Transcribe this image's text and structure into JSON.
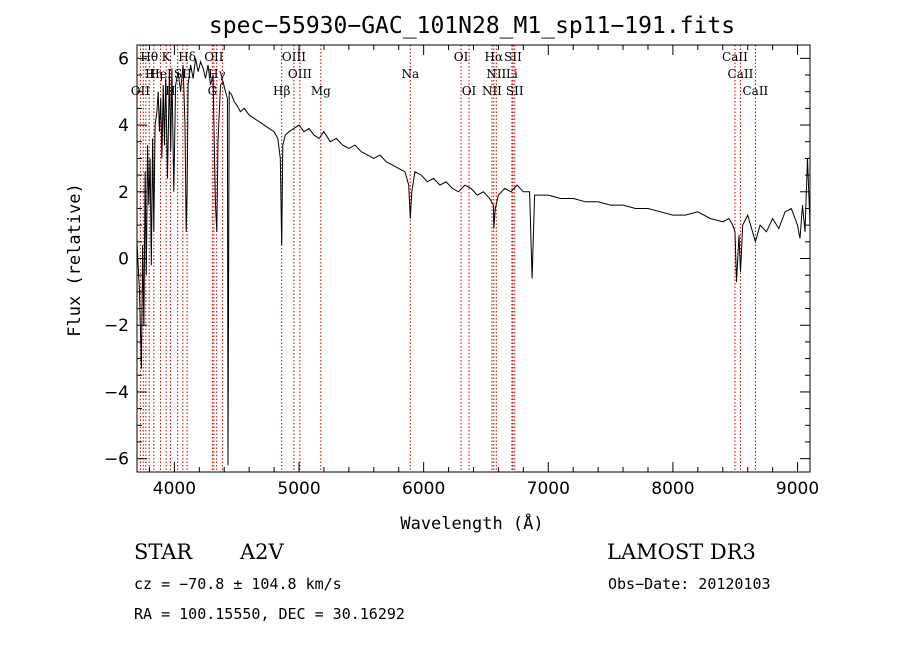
{
  "chart_data": {
    "type": "line",
    "title": "spec−55930−GAC_101N28_M1_sp11−191.fits",
    "xlabel": "Wavelength (Å)",
    "ylabel": "Flux (relative)",
    "xlim": [
      3700,
      9100
    ],
    "ylim": [
      -6.4,
      6.4
    ],
    "x_ticks": [
      4000,
      5000,
      6000,
      7000,
      8000,
      9000
    ],
    "y_ticks": [
      -6,
      -4,
      -2,
      0,
      2,
      4,
      6
    ],
    "y_tick_labels": [
      "−6",
      "−4",
      "−2",
      "0",
      "2",
      "4",
      "6"
    ],
    "series": [
      {
        "name": "spectrum",
        "x": [
          3700,
          3720,
          3735,
          3745,
          3755,
          3765,
          3775,
          3785,
          3795,
          3805,
          3815,
          3825,
          3835,
          3845,
          3860,
          3870,
          3880,
          3890,
          3900,
          3910,
          3920,
          3930,
          3945,
          3960,
          3970,
          3980,
          3995,
          4010,
          4030,
          4050,
          4070,
          4085,
          4095,
          4102,
          4110,
          4130,
          4150,
          4170,
          4190,
          4210,
          4230,
          4250,
          4270,
          4290,
          4310,
          4320,
          4330,
          4340,
          4350,
          4370,
          4390,
          4410,
          4425,
          4430,
          4440,
          4460,
          4480,
          4500,
          4530,
          4560,
          4600,
          4640,
          4680,
          4720,
          4760,
          4800,
          4830,
          4850,
          4861,
          4870,
          4890,
          4920,
          4960,
          5000,
          5040,
          5080,
          5120,
          5160,
          5200,
          5250,
          5300,
          5350,
          5400,
          5450,
          5500,
          5550,
          5600,
          5650,
          5700,
          5750,
          5800,
          5850,
          5880,
          5893,
          5905,
          5930,
          5980,
          6030,
          6080,
          6130,
          6180,
          6230,
          6280,
          6330,
          6380,
          6430,
          6480,
          6530,
          6560,
          6563,
          6575,
          6600,
          6650,
          6700,
          6750,
          6800,
          6850,
          6870,
          6890,
          6950,
          7000,
          7100,
          7200,
          7300,
          7400,
          7500,
          7600,
          7700,
          7800,
          7900,
          8000,
          8100,
          8200,
          8300,
          8400,
          8450,
          8480,
          8498,
          8510,
          8530,
          8542,
          8560,
          8600,
          8662,
          8700,
          8750,
          8800,
          8850,
          8900,
          8950,
          9000,
          9020,
          9040,
          9060,
          9080,
          9100
        ],
        "y": [
          0.5,
          -1.0,
          -3.3,
          0.4,
          -2.0,
          2.6,
          -0.5,
          3.4,
          1.6,
          3.0,
          -0.2,
          3.6,
          0.8,
          4.0,
          4.4,
          5.0,
          3.8,
          4.8,
          3.0,
          5.2,
          3.4,
          5.4,
          2.4,
          5.6,
          3.2,
          5.7,
          2.0,
          5.2,
          5.6,
          5.0,
          5.8,
          4.0,
          0.8,
          2.0,
          5.2,
          5.8,
          5.4,
          6.0,
          5.6,
          5.9,
          5.7,
          5.4,
          5.8,
          5.2,
          5.5,
          3.4,
          1.6,
          0.8,
          3.5,
          5.2,
          5.3,
          5.0,
          4.8,
          -6.2,
          5.0,
          4.9,
          4.7,
          4.6,
          4.4,
          4.5,
          4.3,
          4.2,
          4.1,
          4.0,
          3.9,
          3.8,
          3.6,
          3.0,
          0.4,
          3.4,
          3.7,
          3.8,
          3.9,
          4.0,
          3.8,
          3.9,
          3.7,
          3.6,
          3.8,
          3.5,
          3.6,
          3.4,
          3.3,
          3.4,
          3.2,
          3.1,
          3.0,
          3.1,
          2.9,
          2.8,
          2.7,
          2.6,
          2.2,
          1.2,
          2.0,
          2.6,
          2.5,
          2.3,
          2.4,
          2.2,
          2.3,
          2.1,
          2.0,
          2.2,
          2.1,
          1.9,
          2.0,
          1.8,
          1.6,
          0.9,
          1.5,
          1.9,
          2.1,
          2.0,
          2.2,
          2.0,
          2.0,
          -0.6,
          1.9,
          1.9,
          1.9,
          1.8,
          1.8,
          1.7,
          1.7,
          1.6,
          1.6,
          1.5,
          1.5,
          1.4,
          1.3,
          1.3,
          1.4,
          1.2,
          1.1,
          1.2,
          1.0,
          0.8,
          -0.7,
          0.7,
          -0.4,
          1.0,
          1.3,
          0.5,
          1.0,
          0.8,
          1.2,
          0.9,
          1.4,
          1.5,
          1.0,
          0.6,
          1.6,
          0.8,
          3.0,
          1.0
        ]
      }
    ],
    "annotations": [
      {
        "label": "Hθ",
        "wavelength": 3798,
        "row": 1
      },
      {
        "label": "K",
        "wavelength": 3934,
        "row": 1
      },
      {
        "label": "Hδ",
        "wavelength": 4102,
        "row": 1
      },
      {
        "label": "OII",
        "wavelength": 4317,
        "row": 1
      },
      {
        "label": "OIII",
        "wavelength": 4959,
        "row": 1
      },
      {
        "label": "OI",
        "wavelength": 6300,
        "row": 1
      },
      {
        "label": "Hα",
        "wavelength": 6563,
        "row": 1
      },
      {
        "label": "SII",
        "wavelength": 6717,
        "row": 1
      },
      {
        "label": "CaII",
        "wavelength": 8498,
        "row": 1
      },
      {
        "label": "Hη",
        "wavelength": 3835,
        "row": 2
      },
      {
        "label": "HeI",
        "wavelength": 3889,
        "row": 2
      },
      {
        "label": "SII",
        "wavelength": 4068,
        "row": 2
      },
      {
        "label": "Hγ",
        "wavelength": 4340,
        "row": 2
      },
      {
        "label": "OIII",
        "wavelength": 5007,
        "row": 2
      },
      {
        "label": "Na",
        "wavelength": 5893,
        "row": 2
      },
      {
        "label": "NII",
        "wavelength": 6583,
        "row": 2
      },
      {
        "label": "Li",
        "wavelength": 6708,
        "row": 2
      },
      {
        "label": "CaII",
        "wavelength": 8542,
        "row": 2
      },
      {
        "label": "OII",
        "wavelength": 3727,
        "row": 3
      },
      {
        "label": "H",
        "wavelength": 3968,
        "row": 3
      },
      {
        "label": "G",
        "wavelength": 4305,
        "row": 3
      },
      {
        "label": "Hβ",
        "wavelength": 4861,
        "row": 3
      },
      {
        "label": "Mg",
        "wavelength": 5175,
        "row": 3
      },
      {
        "label": "OI",
        "wavelength": 6364,
        "row": 3
      },
      {
        "label": "NII",
        "wavelength": 6548,
        "row": 3
      },
      {
        "label": "SII",
        "wavelength": 6731,
        "row": 3
      },
      {
        "label": "CaII",
        "wavelength": 8662,
        "row": 3
      }
    ],
    "extra_marker_lines": [
      3750,
      3771,
      4026,
      4387
    ]
  },
  "info": {
    "class": "STAR",
    "subclass": "A2V",
    "survey": "LAMOST DR3",
    "cz": "cz = −70.8 ± 104.8 km/s",
    "obs_date": "Obs−Date: 20120103",
    "coords": "RA = 100.15550, DEC =  30.16292"
  },
  "colors": {
    "spectrum": "#000000",
    "marker": "#c00000",
    "axis": "#000000"
  }
}
